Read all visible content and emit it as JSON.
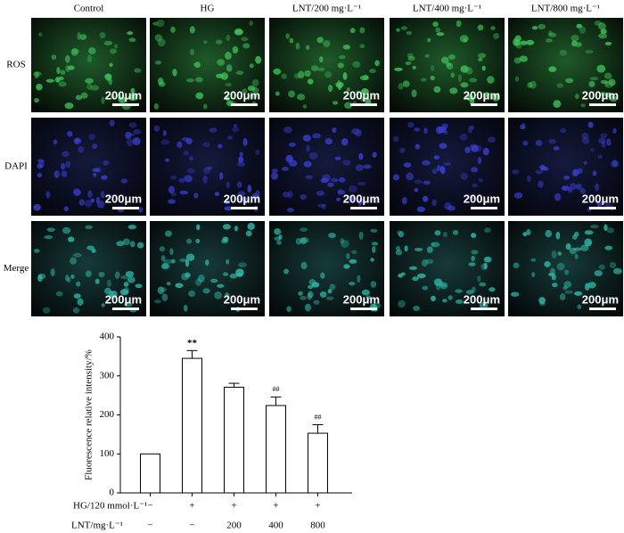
{
  "panels": {
    "columns": [
      "Control",
      "HG",
      "LNT/200 mg·L⁻¹",
      "LNT/400 mg·L⁻¹",
      "LNT/800 mg·L⁻¹"
    ],
    "rows": [
      "ROS",
      "DAPI",
      "Merge"
    ],
    "scale_bar": "200μm"
  },
  "chart_data": {
    "type": "bar",
    "y_label": "Fluorescence relative intensity/%",
    "values": [
      100,
      345,
      271,
      224,
      153
    ],
    "errors": [
      0,
      20,
      10,
      22,
      22
    ],
    "annotations": [
      null,
      "**",
      null,
      "##",
      "##"
    ],
    "treatment_rows": [
      {
        "label": "HG/120 mmol·L⁻¹",
        "values": [
          "−",
          "+",
          "+",
          "+",
          "+"
        ]
      },
      {
        "label": "LNT/mg·L⁻¹",
        "values": [
          "−",
          "−",
          "200",
          "400",
          "800"
        ]
      }
    ],
    "color": "#ffffff",
    "ylim": [
      0,
      400
    ],
    "yticks": [
      0,
      100,
      200,
      300,
      400
    ],
    "grid": false
  }
}
